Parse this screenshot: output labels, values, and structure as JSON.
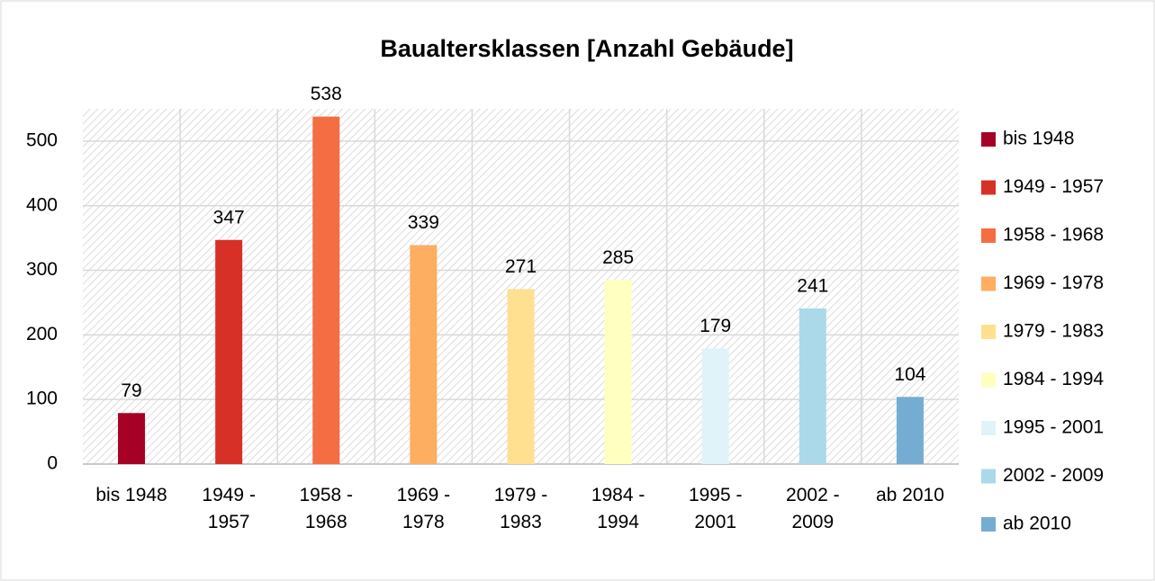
{
  "chart_data": {
    "type": "bar",
    "title": "Baualtersklassen [Anzahl Gebäude]",
    "categories": [
      "bis 1948",
      "1949 - 1957",
      "1958 - 1968",
      "1969 - 1978",
      "1979 - 1983",
      "1984 - 1994",
      "1995 - 2001",
      "2002 - 2009",
      "ab 2010"
    ],
    "values": [
      79,
      347,
      538,
      339,
      271,
      285,
      179,
      241,
      104
    ],
    "colors": [
      "#a50026",
      "#d73027",
      "#f46d43",
      "#fdae61",
      "#fee090",
      "#ffffbf",
      "#e0f3f8",
      "#abd9e9",
      "#74add1"
    ],
    "ylim": [
      0,
      550
    ],
    "yticks": [
      0,
      100,
      200,
      300,
      400,
      500
    ],
    "grid": true,
    "legend": "right"
  }
}
